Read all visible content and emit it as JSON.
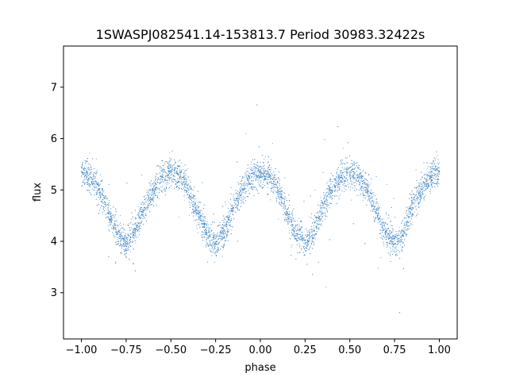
{
  "chart_data": {
    "type": "scatter",
    "title": "1SWASPJ082541.14-153813.7 Period 30983.32422s",
    "xlabel": "phase",
    "ylabel": "flux",
    "xlim": [
      -1.1,
      1.1
    ],
    "ylim": [
      2.1,
      7.8
    ],
    "x_ticks": [
      -1.0,
      -0.75,
      -0.5,
      -0.25,
      0.0,
      0.25,
      0.5,
      0.75,
      1.0
    ],
    "x_tick_labels": [
      "−1.00",
      "−0.75",
      "−0.50",
      "−0.25",
      "0.00",
      "0.25",
      "0.50",
      "0.75",
      "1.00"
    ],
    "y_ticks": [
      3,
      4,
      5,
      6,
      7
    ],
    "y_tick_labels": [
      "3",
      "4",
      "5",
      "6",
      "7"
    ],
    "grid": false,
    "legend": "none",
    "marker_color": "#3d85c6",
    "series": [
      {
        "x": [
          -1.0,
          -0.95,
          -0.9,
          -0.85,
          -0.8,
          -0.75,
          -0.7,
          -0.65,
          -0.6,
          -0.55,
          -0.5,
          -0.45,
          -0.4,
          -0.35,
          -0.3,
          -0.25,
          -0.2,
          -0.15,
          -0.1,
          -0.05,
          0.0,
          0.05,
          0.1,
          0.15,
          0.2,
          0.25,
          0.3,
          0.35,
          0.4,
          0.45,
          0.5,
          0.55,
          0.6,
          0.65,
          0.7,
          0.75,
          0.8,
          0.85,
          0.9,
          0.95,
          1.0
        ],
        "y": [
          5.35,
          5.25,
          5.0,
          4.55,
          4.15,
          3.95,
          4.2,
          4.65,
          5.0,
          5.25,
          5.35,
          5.25,
          5.0,
          4.55,
          4.15,
          3.95,
          4.2,
          4.65,
          5.0,
          5.25,
          5.35,
          5.25,
          5.0,
          4.55,
          4.15,
          3.95,
          4.2,
          4.65,
          5.0,
          5.25,
          5.35,
          5.25,
          5.0,
          4.55,
          4.15,
          3.95,
          4.2,
          4.65,
          5.0,
          5.25,
          5.35
        ]
      }
    ]
  }
}
